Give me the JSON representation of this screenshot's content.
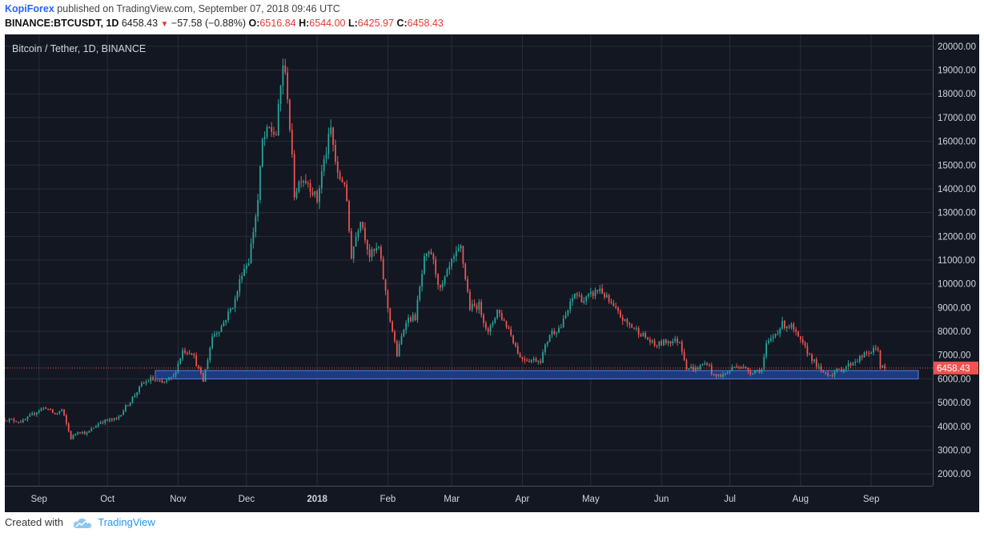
{
  "header": {
    "author": "KopiForex",
    "published_text": "published on TradingView.com, September 07, 2018 09:46 UTC",
    "symbol": "BINANCE:BTCUSDT, 1D",
    "last": "6458.43",
    "change": "−57.58 (−0.88%)",
    "o_label": "O:",
    "o_value": "6516.84",
    "h_label": "H:",
    "h_value": "6544.00",
    "l_label": "L:",
    "l_value": "6425.97",
    "c_label": "C:",
    "c_value": "6458.43"
  },
  "footer": {
    "created_with": "Created with",
    "brand": "TradingView"
  },
  "colors": {
    "background": "#131722",
    "grid": "#2a2e39",
    "up": "#26a69a",
    "down": "#ef5350",
    "support_zone": "#1e3f8f",
    "last_price_tag": "#ef5350"
  },
  "chart_data": {
    "type": "candlestick",
    "title": "Bitcoin / Tether, 1D, BINANCE",
    "ylim": [
      1500,
      20500
    ],
    "y_ticks": [
      2000,
      3000,
      4000,
      5000,
      6000,
      7000,
      8000,
      9000,
      10000,
      11000,
      12000,
      13000,
      14000,
      15000,
      16000,
      17000,
      18000,
      19000,
      20000
    ],
    "y_tick_labels": [
      "2000.00",
      "3000.00",
      "4000.00",
      "5000.00",
      "6000.00",
      "7000.00",
      "8000.00",
      "9000.00",
      "10000.00",
      "11000.00",
      "12000.00",
      "13000.00",
      "14000.00",
      "15000.00",
      "16000.00",
      "17000.00",
      "18000.00",
      "19000.00",
      "20000.00"
    ],
    "x_range": [
      "2017-08-17",
      "2018-09-28"
    ],
    "x_ticks": [
      {
        "date": "2017-09-01",
        "label": "Sep"
      },
      {
        "date": "2017-10-01",
        "label": "Oct"
      },
      {
        "date": "2017-11-01",
        "label": "Nov"
      },
      {
        "date": "2017-12-01",
        "label": "Dec"
      },
      {
        "date": "2018-01-01",
        "label": "2018",
        "bold": true
      },
      {
        "date": "2018-02-01",
        "label": "Feb"
      },
      {
        "date": "2018-03-01",
        "label": "Mar"
      },
      {
        "date": "2018-04-01",
        "label": "Apr"
      },
      {
        "date": "2018-05-01",
        "label": "May"
      },
      {
        "date": "2018-06-01",
        "label": "Jun"
      },
      {
        "date": "2018-07-01",
        "label": "Jul"
      },
      {
        "date": "2018-08-01",
        "label": "Aug"
      },
      {
        "date": "2018-09-01",
        "label": "Sep"
      }
    ],
    "last_price": 6458.43,
    "last_price_label": "6458.43",
    "support_zone": {
      "from": "2017-10-22",
      "to": "2018-09-28",
      "low": 6000,
      "high": 6350
    },
    "close_series": [
      [
        "2017-08-17",
        4300
      ],
      [
        "2017-08-25",
        4200
      ],
      [
        "2017-09-01",
        4700
      ],
      [
        "2017-09-04",
        4800
      ],
      [
        "2017-09-08",
        4500
      ],
      [
        "2017-09-11",
        4700
      ],
      [
        "2017-09-15",
        3500
      ],
      [
        "2017-09-18",
        3800
      ],
      [
        "2017-09-22",
        3700
      ],
      [
        "2017-09-28",
        4200
      ],
      [
        "2017-10-05",
        4300
      ],
      [
        "2017-10-12",
        5200
      ],
      [
        "2017-10-16",
        5750
      ],
      [
        "2017-10-20",
        6000
      ],
      [
        "2017-10-25",
        5800
      ],
      [
        "2017-10-30",
        6100
      ],
      [
        "2017-11-03",
        7200
      ],
      [
        "2017-11-07",
        7150
      ],
      [
        "2017-11-12",
        5900
      ],
      [
        "2017-11-16",
        7800
      ],
      [
        "2017-11-20",
        8200
      ],
      [
        "2017-11-26",
        9300
      ],
      [
        "2017-11-29",
        10500
      ],
      [
        "2017-12-02",
        11000
      ],
      [
        "2017-12-06",
        13500
      ],
      [
        "2017-12-08",
        16000
      ],
      [
        "2017-12-11",
        16500
      ],
      [
        "2017-12-14",
        16300
      ],
      [
        "2017-12-17",
        19300
      ],
      [
        "2017-12-19",
        18000
      ],
      [
        "2017-12-22",
        13800
      ],
      [
        "2017-12-25",
        14500
      ],
      [
        "2017-12-28",
        14300
      ],
      [
        "2018-01-01",
        13500
      ],
      [
        "2018-01-03",
        14700
      ],
      [
        "2018-01-07",
        16500
      ],
      [
        "2018-01-10",
        14500
      ],
      [
        "2018-01-13",
        14300
      ],
      [
        "2018-01-16",
        11200
      ],
      [
        "2018-01-20",
        12800
      ],
      [
        "2018-01-24",
        11200
      ],
      [
        "2018-01-28",
        11500
      ],
      [
        "2018-02-01",
        9000
      ],
      [
        "2018-02-05",
        7000
      ],
      [
        "2018-02-09",
        8500
      ],
      [
        "2018-02-13",
        8600
      ],
      [
        "2018-02-17",
        11000
      ],
      [
        "2018-02-20",
        11300
      ],
      [
        "2018-02-24",
        9700
      ],
      [
        "2018-03-01",
        10900
      ],
      [
        "2018-03-05",
        11500
      ],
      [
        "2018-03-09",
        9000
      ],
      [
        "2018-03-13",
        9100
      ],
      [
        "2018-03-17",
        7900
      ],
      [
        "2018-03-21",
        8900
      ],
      [
        "2018-03-26",
        8100
      ],
      [
        "2018-03-31",
        6900
      ],
      [
        "2018-04-04",
        6800
      ],
      [
        "2018-04-09",
        6800
      ],
      [
        "2018-04-13",
        7900
      ],
      [
        "2018-04-18",
        8200
      ],
      [
        "2018-04-24",
        9600
      ],
      [
        "2018-04-28",
        9300
      ],
      [
        "2018-05-05",
        9800
      ],
      [
        "2018-05-10",
        9100
      ],
      [
        "2018-05-16",
        8400
      ],
      [
        "2018-05-22",
        8000
      ],
      [
        "2018-05-29",
        7400
      ],
      [
        "2018-06-04",
        7600
      ],
      [
        "2018-06-09",
        7600
      ],
      [
        "2018-06-12",
        6500
      ],
      [
        "2018-06-16",
        6400
      ],
      [
        "2018-06-21",
        6700
      ],
      [
        "2018-06-24",
        6100
      ],
      [
        "2018-06-29",
        6200
      ],
      [
        "2018-07-04",
        6600
      ],
      [
        "2018-07-10",
        6300
      ],
      [
        "2018-07-15",
        6400
      ],
      [
        "2018-07-17",
        7400
      ],
      [
        "2018-07-24",
        8300
      ],
      [
        "2018-07-28",
        8200
      ],
      [
        "2018-07-31",
        7700
      ],
      [
        "2018-08-05",
        7000
      ],
      [
        "2018-08-10",
        6300
      ],
      [
        "2018-08-14",
        6200
      ],
      [
        "2018-08-19",
        6400
      ],
      [
        "2018-08-24",
        6700
      ],
      [
        "2018-08-29",
        7000
      ],
      [
        "2018-09-04",
        7300
      ],
      [
        "2018-09-05",
        6500
      ],
      [
        "2018-09-07",
        6458.43
      ]
    ]
  }
}
